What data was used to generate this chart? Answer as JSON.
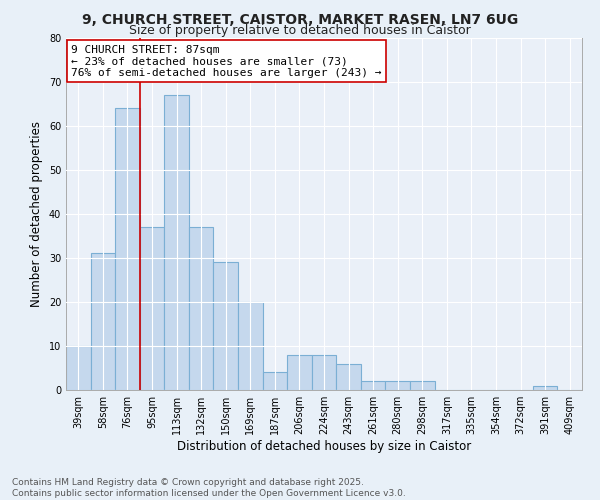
{
  "title1": "9, CHURCH STREET, CAISTOR, MARKET RASEN, LN7 6UG",
  "title2": "Size of property relative to detached houses in Caistor",
  "xlabel": "Distribution of detached houses by size in Caistor",
  "ylabel": "Number of detached properties",
  "categories": [
    "39sqm",
    "58sqm",
    "76sqm",
    "95sqm",
    "113sqm",
    "132sqm",
    "150sqm",
    "169sqm",
    "187sqm",
    "206sqm",
    "224sqm",
    "243sqm",
    "261sqm",
    "280sqm",
    "298sqm",
    "317sqm",
    "335sqm",
    "354sqm",
    "372sqm",
    "391sqm",
    "409sqm"
  ],
  "values": [
    10,
    31,
    64,
    37,
    67,
    37,
    29,
    20,
    4,
    8,
    8,
    6,
    2,
    2,
    2,
    0,
    0,
    0,
    0,
    1,
    0
  ],
  "bar_color": "#c5d8ed",
  "bar_edge_color": "#7bafd4",
  "vline_color": "#cc0000",
  "annotation_text": "9 CHURCH STREET: 87sqm\n← 23% of detached houses are smaller (73)\n76% of semi-detached houses are larger (243) →",
  "annotation_box_color": "#ffffff",
  "annotation_box_edge": "#cc0000",
  "ylim": [
    0,
    80
  ],
  "yticks": [
    0,
    10,
    20,
    30,
    40,
    50,
    60,
    70,
    80
  ],
  "footnote": "Contains HM Land Registry data © Crown copyright and database right 2025.\nContains public sector information licensed under the Open Government Licence v3.0.",
  "bg_color": "#e8f0f8",
  "plot_bg_color": "#eaf0f8",
  "grid_color": "#ffffff",
  "title_fontsize": 10,
  "subtitle_fontsize": 9,
  "axis_label_fontsize": 8.5,
  "tick_fontsize": 7,
  "annotation_fontsize": 8,
  "footnote_fontsize": 6.5
}
